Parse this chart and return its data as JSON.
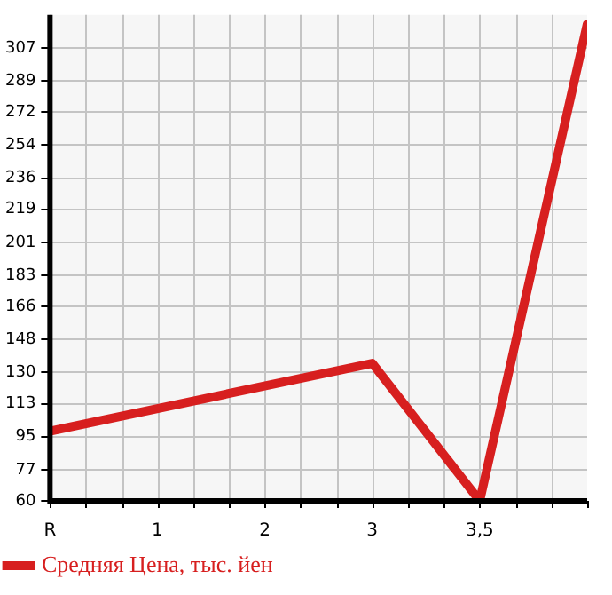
{
  "chart_data": {
    "type": "line",
    "categories": [
      "R",
      "1",
      "2",
      "3",
      "3,5",
      null
    ],
    "series": [
      {
        "name": "Средняя Цена, тыс. йен",
        "color": "#d71f1f",
        "values": [
          98,
          null,
          null,
          135,
          60,
          320
        ]
      }
    ],
    "ylim": [
      60,
      325
    ],
    "yticks": [
      60,
      77,
      95,
      113,
      130,
      148,
      166,
      183,
      201,
      219,
      236,
      254,
      272,
      289,
      307
    ],
    "grid": true,
    "legend": "bottom left",
    "marker": "none",
    "line_style": "solid"
  }
}
